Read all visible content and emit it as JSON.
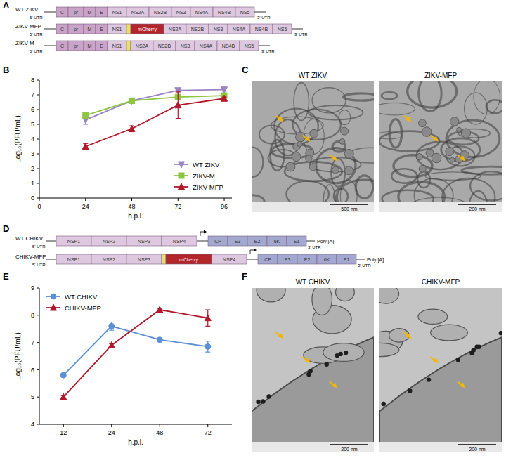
{
  "panel_labels": [
    "A",
    "B",
    "C",
    "D",
    "E",
    "F"
  ],
  "zika_constructs": {
    "utr5": "5' UTR",
    "utr3": "3' UTR",
    "rows": [
      {
        "name": "WT ZIKV",
        "genes": [
          "C",
          "pr",
          "M",
          "E",
          "NS1",
          "NS2A",
          "NS2B",
          "NS3",
          "NS4A",
          "NS4B",
          "NS5"
        ],
        "colors": [
          "#c9a3c8",
          "#c9a3c8",
          "#c9a3c8",
          "#c9a3c8",
          "#ddc8df",
          "#ddc8df",
          "#ddc8df",
          "#ddc8df",
          "#ddc8df",
          "#ddc8df",
          "#ddc8df"
        ]
      },
      {
        "name": "ZIKV-MFP",
        "genes": [
          "C",
          "pr",
          "M",
          "E",
          "NS1",
          null,
          "mCherry",
          "NS2A",
          "NS2B",
          "NS3",
          "NS4A",
          "NS4B",
          "NS5"
        ],
        "colors": [
          "#c9a3c8",
          "#c9a3c8",
          "#c9a3c8",
          "#c9a3c8",
          "#ddc8df",
          "#e9e06b",
          "#b3262c",
          "#ddc8df",
          "#ddc8df",
          "#ddc8df",
          "#ddc8df",
          "#ddc8df",
          "#ddc8df"
        ]
      },
      {
        "name": "ZIKV-M",
        "genes": [
          "C",
          "pr",
          "M",
          "E",
          "NS1",
          null,
          "NS2A",
          "NS2B",
          "NS3",
          "NS4A",
          "NS4B",
          "NS5"
        ],
        "colors": [
          "#c9a3c8",
          "#c9a3c8",
          "#c9a3c8",
          "#c9a3c8",
          "#ddc8df",
          "#e9e06b",
          "#ddc8df",
          "#ddc8df",
          "#ddc8df",
          "#ddc8df",
          "#ddc8df",
          "#ddc8df"
        ]
      }
    ]
  },
  "zika_micrographs": {
    "images": [
      {
        "title": "WT ZIKV",
        "scale_bar": "500 nm"
      },
      {
        "title": "ZIKV-MFP",
        "scale_bar": "200 nm"
      }
    ]
  },
  "chikv_constructs": {
    "utr5": "5' UTR",
    "utr3": "3' UTR",
    "poly_a": "Poly [A]",
    "rows": [
      {
        "name": "WT CHIKV",
        "nonstructural": [
          "NSP1",
          "NSP2",
          "NSP3",
          "NSP4"
        ],
        "nonstructural_colors": [
          "#ddc8df",
          "#ddc8df",
          "#ddc8df",
          "#ddc8df"
        ],
        "structural": [
          "CP",
          "E3",
          "E2",
          "6K",
          "E1"
        ],
        "structural_colors": [
          "#a3a8d0",
          "#a3a8d0",
          "#a3a8d0",
          "#a3a8d0",
          "#a3a8d0"
        ]
      },
      {
        "name": "CHIKV-MFP",
        "nonstructural": [
          "NSP1",
          "NSP2",
          "NSP3",
          null,
          "mCherry",
          "NSP4"
        ],
        "nonstructural_colors": [
          "#ddc8df",
          "#ddc8df",
          "#ddc8df",
          "#e9e06b",
          "#b3262c",
          "#ddc8df"
        ],
        "structural": [
          "CP",
          "E3",
          "E2",
          "6K",
          "E1"
        ],
        "structural_colors": [
          "#a3a8d0",
          "#a3a8d0",
          "#a3a8d0",
          "#a3a8d0",
          "#a3a8d0"
        ]
      }
    ]
  },
  "chikv_micrographs": {
    "images": [
      {
        "title": "WT CHIKV",
        "scale_bar": "200 nm"
      },
      {
        "title": "CHIKV-MFP",
        "scale_bar": "200 nm"
      }
    ]
  },
  "chart_data": [
    {
      "type": "line",
      "x_label": "h.p.i.",
      "y_label": "Log₁₀(PFU/mL)",
      "x": [
        24,
        48,
        72,
        96
      ],
      "xlim": [
        0,
        100
      ],
      "xticks": [
        0,
        24,
        48,
        72,
        96
      ],
      "ylim": [
        0,
        8
      ],
      "yticks": [
        0,
        1,
        2,
        3,
        4,
        5,
        6,
        7,
        8
      ],
      "grid": false,
      "legend": "lower right",
      "series": [
        {
          "name": "WT ZIKV",
          "color": "#9b84c4",
          "marker": "triangle-down",
          "values": [
            5.3,
            6.6,
            7.3,
            7.35
          ],
          "errors": [
            0.3,
            0.05,
            0.1,
            0.1
          ]
        },
        {
          "name": "ZIKV-M",
          "color": "#8dc63f",
          "marker": "square",
          "values": [
            5.6,
            6.6,
            6.85,
            6.95
          ],
          "errors": [
            0.1,
            0.05,
            0.1,
            0.1
          ]
        },
        {
          "name": "ZIKV-MFP",
          "color": "#b2182b",
          "marker": "triangle-up",
          "values": [
            3.5,
            4.7,
            6.3,
            6.75
          ],
          "errors": [
            0.2,
            0.2,
            0.9,
            0.1
          ]
        }
      ]
    },
    {
      "type": "line",
      "x_label": "h.p.i.",
      "y_label": "Log₁₀(PFU/mL)",
      "categories": [
        "12",
        "24",
        "48",
        "72"
      ],
      "ylim": [
        4,
        9
      ],
      "yticks": [
        4,
        5,
        6,
        7,
        8,
        9
      ],
      "grid": false,
      "legend": "upper left",
      "series": [
        {
          "name": "WT CHIKV",
          "color": "#5b8fd6",
          "marker": "circle",
          "values": [
            5.8,
            7.6,
            7.1,
            6.85
          ],
          "errors": [
            0.05,
            0.15,
            0.05,
            0.2
          ]
        },
        {
          "name": "CHIKV-MFP",
          "color": "#b2182b",
          "marker": "triangle-up",
          "values": [
            5.0,
            6.9,
            8.2,
            7.9
          ],
          "errors": [
            0.05,
            0.05,
            0.05,
            0.3
          ]
        }
      ]
    }
  ]
}
